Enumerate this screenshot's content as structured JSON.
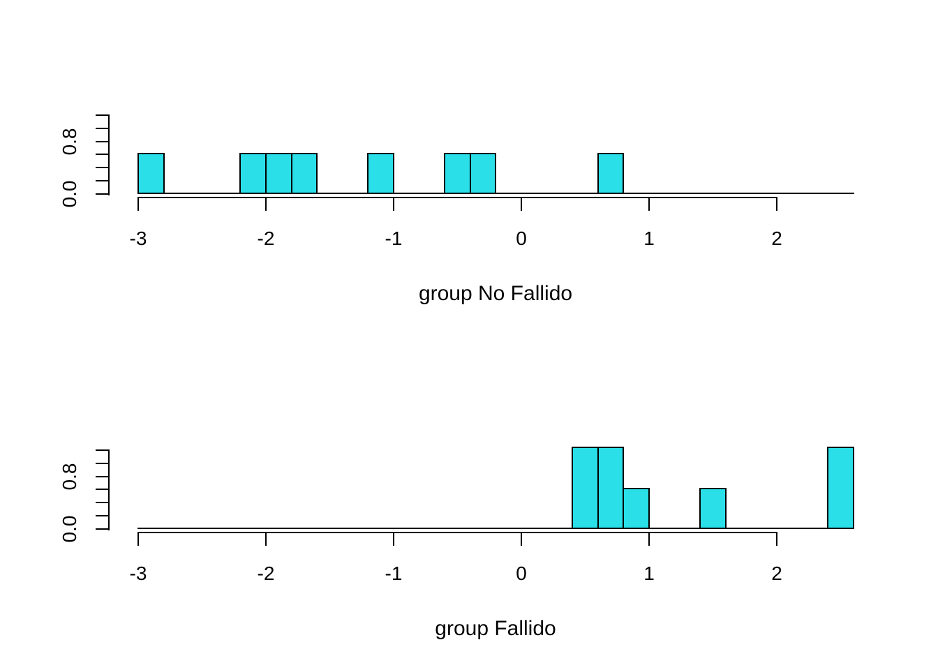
{
  "figure": {
    "background": "#ffffff",
    "bar_fill": "#2adfe8",
    "bar_border": "#000000",
    "axis_color": "#000000"
  },
  "chart_data": [
    {
      "type": "bar",
      "subtype": "histogram-density",
      "xlabel": "group No Fallido",
      "ylabel": "",
      "title": "",
      "grid": false,
      "legend": "none",
      "xlim": [
        -3.0,
        2.6
      ],
      "ylim": [
        0,
        1.2
      ],
      "bin_width": 0.2,
      "xticks": [
        {
          "value": -3,
          "label": "-3"
        },
        {
          "value": -2,
          "label": "-2"
        },
        {
          "value": -1,
          "label": "-1"
        },
        {
          "value": 0,
          "label": "0"
        },
        {
          "value": 1,
          "label": "1"
        },
        {
          "value": 2,
          "label": "2"
        }
      ],
      "yticks": [
        {
          "value": 0.0,
          "label": "0.0"
        },
        {
          "value": 0.2,
          "label": ""
        },
        {
          "value": 0.4,
          "label": ""
        },
        {
          "value": 0.6,
          "label": ""
        },
        {
          "value": 0.8,
          "label": "0.8"
        },
        {
          "value": 1.0,
          "label": ""
        },
        {
          "value": 1.2,
          "label": ""
        }
      ],
      "bars": [
        {
          "from": -3.0,
          "to": -2.8,
          "density": 0.625
        },
        {
          "from": -2.2,
          "to": -2.0,
          "density": 0.625
        },
        {
          "from": -2.0,
          "to": -1.8,
          "density": 0.625
        },
        {
          "from": -1.8,
          "to": -1.6,
          "density": 0.625
        },
        {
          "from": -1.2,
          "to": -1.0,
          "density": 0.625
        },
        {
          "from": -0.6,
          "to": -0.4,
          "density": 0.625
        },
        {
          "from": -0.4,
          "to": -0.2,
          "density": 0.625
        },
        {
          "from": 0.6,
          "to": 0.8,
          "density": 0.625
        }
      ]
    },
    {
      "type": "bar",
      "subtype": "histogram-density",
      "xlabel": "group Fallido",
      "ylabel": "",
      "title": "",
      "grid": false,
      "legend": "none",
      "xlim": [
        -3.0,
        2.6
      ],
      "ylim": [
        0,
        1.2
      ],
      "bin_width": 0.2,
      "xticks": [
        {
          "value": -3,
          "label": "-3"
        },
        {
          "value": -2,
          "label": "-2"
        },
        {
          "value": -1,
          "label": "-1"
        },
        {
          "value": 0,
          "label": "0"
        },
        {
          "value": 1,
          "label": "1"
        },
        {
          "value": 2,
          "label": "2"
        }
      ],
      "yticks": [
        {
          "value": 0.0,
          "label": "0.0"
        },
        {
          "value": 0.2,
          "label": ""
        },
        {
          "value": 0.4,
          "label": ""
        },
        {
          "value": 0.6,
          "label": ""
        },
        {
          "value": 0.8,
          "label": "0.8"
        },
        {
          "value": 1.0,
          "label": ""
        },
        {
          "value": 1.2,
          "label": ""
        }
      ],
      "bars": [
        {
          "from": 0.4,
          "to": 0.6,
          "density": 1.25
        },
        {
          "from": 0.6,
          "to": 0.8,
          "density": 1.25
        },
        {
          "from": 0.8,
          "to": 1.0,
          "density": 0.625
        },
        {
          "from": 1.4,
          "to": 1.6,
          "density": 0.625
        },
        {
          "from": 2.4,
          "to": 2.6,
          "density": 1.25
        }
      ]
    }
  ]
}
